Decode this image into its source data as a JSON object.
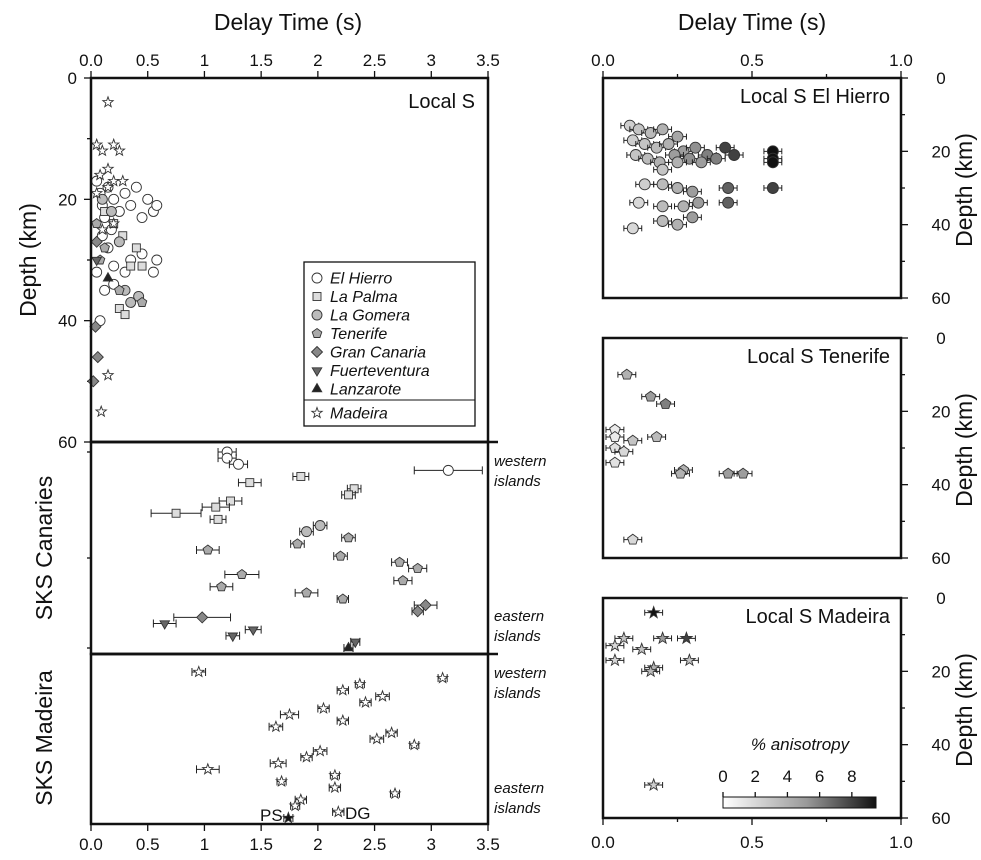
{
  "figure": {
    "top_xlabel_left": "Delay Time (s)",
    "top_xlabel_right": "Delay Time (s)",
    "left_ylabel_local": "Depth (km)",
    "left_ylabel_sks_canaries": "SKS Canaries",
    "left_ylabel_sks_madeira": "SKS Madeira",
    "right_ylabel": "Depth (km)",
    "note_western": [
      "western",
      "islands"
    ],
    "note_eastern": [
      "eastern",
      "islands"
    ],
    "station_labels": [
      "PS",
      "DG"
    ],
    "colorbar": {
      "title": "% anisotropy",
      "ticks": [
        "0",
        "2",
        "4",
        "6",
        "8"
      ],
      "range": [
        0,
        9.5
      ],
      "colors": [
        "#ffffff",
        "#999999",
        "#111111"
      ]
    }
  },
  "legend": {
    "items": [
      {
        "label": "El Hierro",
        "marker": "circle",
        "color": "#ffffff"
      },
      {
        "label": "La Palma",
        "marker": "square",
        "color": "#dddddd"
      },
      {
        "label": "La Gomera",
        "marker": "circle",
        "color": "#bbbbbb"
      },
      {
        "label": "Tenerife",
        "marker": "pentagon",
        "color": "#aaaaaa"
      },
      {
        "label": "Gran Canaria",
        "marker": "diamond",
        "color": "#888888"
      },
      {
        "label": "Fuerteventura",
        "marker": "triangle-down",
        "color": "#666666"
      },
      {
        "label": "Lanzarote",
        "marker": "triangle-up",
        "color": "#222222"
      }
    ],
    "extra": {
      "label": "Madeira",
      "marker": "star",
      "color": "#ffffff"
    }
  },
  "chart_data": [
    {
      "type": "scatter",
      "title": "Local S",
      "xlabel": "Delay Time (s)",
      "ylabel": "Depth (km)",
      "xlim": [
        0,
        3.5
      ],
      "ylim": [
        0,
        60
      ],
      "xticks": [
        0,
        0.5,
        1,
        1.5,
        2,
        2.5,
        3,
        3.5
      ],
      "yticks": [
        0,
        20,
        40,
        60
      ],
      "legend_position": "inside-right",
      "series": [
        {
          "name": "El Hierro",
          "marker": "circle",
          "color": "#ffffff",
          "points": [
            [
              0.05,
              17
            ],
            [
              0.08,
              19
            ],
            [
              0.1,
              21
            ],
            [
              0.12,
              23
            ],
            [
              0.15,
              18
            ],
            [
              0.18,
              25
            ],
            [
              0.2,
              20
            ],
            [
              0.25,
              22
            ],
            [
              0.3,
              19
            ],
            [
              0.35,
              21
            ],
            [
              0.4,
              18
            ],
            [
              0.45,
              23
            ],
            [
              0.5,
              20
            ],
            [
              0.55,
              22
            ],
            [
              0.58,
              21
            ],
            [
              0.1,
              26
            ],
            [
              0.15,
              28
            ],
            [
              0.2,
              31
            ],
            [
              0.3,
              32
            ],
            [
              0.35,
              30
            ],
            [
              0.45,
              29
            ],
            [
              0.55,
              32
            ],
            [
              0.58,
              30
            ],
            [
              0.05,
              32
            ],
            [
              0.12,
              35
            ],
            [
              0.2,
              34
            ],
            [
              0.08,
              40
            ]
          ]
        },
        {
          "name": "La Palma",
          "marker": "square",
          "color": "#dddddd",
          "points": [
            [
              0.12,
              22
            ],
            [
              0.2,
              24
            ],
            [
              0.28,
              26
            ],
            [
              0.35,
              31
            ],
            [
              0.45,
              31
            ],
            [
              0.25,
              38
            ],
            [
              0.3,
              39
            ],
            [
              0.4,
              28
            ]
          ]
        },
        {
          "name": "La Gomera",
          "marker": "circle",
          "color": "#bbbbbb",
          "points": [
            [
              0.1,
              20
            ],
            [
              0.18,
              22
            ],
            [
              0.25,
              27
            ],
            [
              0.3,
              35
            ],
            [
              0.35,
              37
            ],
            [
              0.42,
              36
            ]
          ]
        },
        {
          "name": "Tenerife",
          "marker": "pentagon",
          "color": "#aaaaaa",
          "points": [
            [
              0.05,
              24
            ],
            [
              0.12,
              28
            ],
            [
              0.25,
              35
            ],
            [
              0.45,
              37
            ],
            [
              0.08,
              30
            ]
          ]
        },
        {
          "name": "Gran Canaria",
          "marker": "diamond",
          "color": "#888888",
          "points": [
            [
              0.04,
              41
            ],
            [
              0.06,
              46
            ],
            [
              0.02,
              50
            ],
            [
              0.05,
              27
            ]
          ]
        },
        {
          "name": "Fuerteventura",
          "marker": "triangle-down",
          "color": "#666666",
          "points": [
            [
              0.05,
              30
            ]
          ]
        },
        {
          "name": "Lanzarote",
          "marker": "triangle-up",
          "color": "#222222",
          "points": [
            [
              0.15,
              33
            ]
          ]
        },
        {
          "name": "Madeira",
          "marker": "star",
          "color": "#ffffff",
          "points": [
            [
              0.15,
              4
            ],
            [
              0.05,
              11
            ],
            [
              0.1,
              12
            ],
            [
              0.2,
              11
            ],
            [
              0.25,
              12
            ],
            [
              0.15,
              15
            ],
            [
              0.08,
              16
            ],
            [
              0.2,
              17
            ],
            [
              0.28,
              17
            ],
            [
              0.05,
              19
            ],
            [
              0.15,
              18
            ],
            [
              0.2,
              24
            ],
            [
              0.1,
              25
            ],
            [
              0.15,
              49
            ],
            [
              0.09,
              55
            ]
          ]
        }
      ]
    },
    {
      "type": "scatter",
      "title": "SKS Canaries",
      "xlim": [
        0,
        3.5
      ],
      "series": [
        {
          "name": "El Hierro",
          "marker": "circle",
          "color": "#ffffff",
          "points": [
            {
              "x": 1.2,
              "err": 0.08
            },
            {
              "x": 1.2,
              "err": 0.08
            },
            {
              "x": 1.3,
              "err": 0.08
            },
            {
              "x": 3.15,
              "err": 0.3
            }
          ]
        },
        {
          "name": "La Palma",
          "marker": "square",
          "color": "#dddddd",
          "points": [
            {
              "x": 1.85,
              "err": 0.07
            },
            {
              "x": 1.4,
              "err": 0.1
            },
            {
              "x": 2.32,
              "err": 0.06
            },
            {
              "x": 2.27,
              "err": 0.06
            },
            {
              "x": 1.23,
              "err": 0.1
            },
            {
              "x": 1.1,
              "err": 0.12
            },
            {
              "x": 0.75,
              "err": 0.22
            },
            {
              "x": 1.12,
              "err": 0.07
            }
          ]
        },
        {
          "name": "La Gomera",
          "marker": "circle",
          "color": "#bbbbbb",
          "points": [
            {
              "x": 2.02,
              "err": 0.06
            },
            {
              "x": 1.9,
              "err": 0.06
            }
          ]
        },
        {
          "name": "Tenerife",
          "marker": "pentagon",
          "color": "#aaaaaa",
          "points": [
            {
              "x": 2.27,
              "err": 0.06
            },
            {
              "x": 1.82,
              "err": 0.06
            },
            {
              "x": 1.03,
              "err": 0.1
            },
            {
              "x": 2.2,
              "err": 0.06
            },
            {
              "x": 2.72,
              "err": 0.07
            },
            {
              "x": 2.88,
              "err": 0.08
            },
            {
              "x": 1.33,
              "err": 0.15
            },
            {
              "x": 2.75,
              "err": 0.08
            },
            {
              "x": 1.15,
              "err": 0.1
            },
            {
              "x": 1.9,
              "err": 0.1
            },
            {
              "x": 2.22,
              "err": 0.05
            }
          ]
        },
        {
          "name": "Gran Canaria",
          "marker": "diamond",
          "color": "#888888",
          "points": [
            {
              "x": 2.95,
              "err": 0.1
            },
            {
              "x": 2.88,
              "err": 0.05
            },
            {
              "x": 0.98,
              "err": 0.25
            }
          ]
        },
        {
          "name": "Fuerteventura",
          "marker": "triangle-down",
          "color": "#666666",
          "points": [
            {
              "x": 0.65,
              "err": 0.1
            },
            {
              "x": 1.43,
              "err": 0.07
            },
            {
              "x": 1.25,
              "err": 0.06
            },
            {
              "x": 2.33,
              "err": 0.04
            }
          ]
        },
        {
          "name": "Lanzarote",
          "marker": "triangle-up",
          "color": "#222222",
          "points": [
            {
              "x": 2.27,
              "err": 0.04
            }
          ]
        }
      ]
    },
    {
      "type": "scatter",
      "title": "SKS Madeira",
      "xlim": [
        0,
        3.5
      ],
      "xticks": [
        0,
        0.5,
        1,
        1.5,
        2,
        2.5,
        3,
        3.5
      ],
      "series": [
        {
          "name": "Madeira",
          "marker": "star",
          "color": "#ffffff",
          "points": [
            {
              "x": 0.95,
              "err": 0.06
            },
            {
              "x": 3.1,
              "err": 0.04
            },
            {
              "x": 2.37,
              "err": 0.04
            },
            {
              "x": 2.22,
              "err": 0.05
            },
            {
              "x": 2.57,
              "err": 0.06
            },
            {
              "x": 2.42,
              "err": 0.05
            },
            {
              "x": 2.05,
              "err": 0.05
            },
            {
              "x": 1.75,
              "err": 0.08
            },
            {
              "x": 2.22,
              "err": 0.05
            },
            {
              "x": 1.63,
              "err": 0.06
            },
            {
              "x": 2.65,
              "err": 0.05
            },
            {
              "x": 2.52,
              "err": 0.06
            },
            {
              "x": 2.85,
              "err": 0.04
            },
            {
              "x": 2.02,
              "err": 0.06
            },
            {
              "x": 1.9,
              "err": 0.05
            },
            {
              "x": 1.65,
              "err": 0.07
            },
            {
              "x": 1.03,
              "err": 0.1
            },
            {
              "x": 2.15,
              "err": 0.04
            },
            {
              "x": 1.68,
              "err": 0.04
            },
            {
              "x": 2.15,
              "err": 0.05
            },
            {
              "x": 2.68,
              "err": 0.04
            },
            {
              "x": 1.85,
              "err": 0.05
            },
            {
              "x": 1.8,
              "err": 0.04
            },
            {
              "x": 2.18,
              "err": 0.05
            },
            {
              "x": 1.74,
              "err": 0.04
            }
          ]
        }
      ]
    },
    {
      "type": "scatter",
      "title": "Local S El Hierro",
      "xlim": [
        0,
        1.0
      ],
      "ylim": [
        0,
        60
      ],
      "xticks": [
        0,
        0.5,
        1.0
      ],
      "yticks": [
        0,
        20,
        40,
        60
      ],
      "points_note": "color encodes % anisotropy",
      "points": [
        [
          0.09,
          13,
          2.5
        ],
        [
          0.12,
          14,
          3
        ],
        [
          0.16,
          15,
          3.5
        ],
        [
          0.2,
          14,
          4
        ],
        [
          0.25,
          16,
          4.5
        ],
        [
          0.1,
          17,
          2.5
        ],
        [
          0.14,
          18,
          3
        ],
        [
          0.18,
          19,
          3.5
        ],
        [
          0.22,
          18,
          4
        ],
        [
          0.27,
          20,
          5
        ],
        [
          0.31,
          19,
          5.5
        ],
        [
          0.35,
          21,
          6
        ],
        [
          0.11,
          21,
          3
        ],
        [
          0.15,
          22,
          3.5
        ],
        [
          0.19,
          23,
          4
        ],
        [
          0.24,
          21,
          5
        ],
        [
          0.29,
          22,
          5.5
        ],
        [
          0.41,
          19,
          8
        ],
        [
          0.44,
          21,
          8
        ],
        [
          0.57,
          20,
          9.5
        ],
        [
          0.57,
          22,
          9.5
        ],
        [
          0.57,
          23,
          9.5
        ],
        [
          0.2,
          25,
          3
        ],
        [
          0.25,
          23,
          4
        ],
        [
          0.33,
          23,
          5
        ],
        [
          0.38,
          22,
          6
        ],
        [
          0.14,
          29,
          2.5
        ],
        [
          0.2,
          29,
          3.5
        ],
        [
          0.25,
          30,
          4
        ],
        [
          0.3,
          31,
          5
        ],
        [
          0.42,
          30,
          7
        ],
        [
          0.57,
          30,
          8
        ],
        [
          0.12,
          34,
          2
        ],
        [
          0.2,
          35,
          3.5
        ],
        [
          0.27,
          35,
          4
        ],
        [
          0.32,
          34,
          5
        ],
        [
          0.42,
          34,
          7
        ],
        [
          0.2,
          39,
          3.5
        ],
        [
          0.25,
          40,
          4
        ],
        [
          0.3,
          38,
          5
        ],
        [
          0.1,
          41,
          2
        ]
      ]
    },
    {
      "type": "scatter",
      "title": "Local S Tenerife",
      "xlim": [
        0,
        1.0
      ],
      "ylim": [
        0,
        60
      ],
      "yticks": [
        0,
        20,
        40,
        60
      ],
      "points": [
        [
          0.08,
          10,
          4
        ],
        [
          0.16,
          16,
          5
        ],
        [
          0.21,
          18,
          6
        ],
        [
          0.04,
          25,
          1
        ],
        [
          0.04,
          27,
          1
        ],
        [
          0.04,
          30,
          1.5
        ],
        [
          0.07,
          31,
          2
        ],
        [
          0.1,
          28,
          3
        ],
        [
          0.18,
          27,
          3.5
        ],
        [
          0.04,
          34,
          1.5
        ],
        [
          0.27,
          36,
          4
        ],
        [
          0.26,
          37,
          4
        ],
        [
          0.42,
          37,
          5
        ],
        [
          0.47,
          37,
          5
        ],
        [
          0.1,
          55,
          2
        ]
      ]
    },
    {
      "type": "scatter",
      "title": "Local S Madeira",
      "xlim": [
        0,
        1.0
      ],
      "ylim": [
        0,
        60
      ],
      "yticks": [
        0,
        20,
        40,
        60
      ],
      "points": [
        [
          0.17,
          4,
          9.5
        ],
        [
          0.07,
          11,
          3
        ],
        [
          0.2,
          11,
          5
        ],
        [
          0.28,
          11,
          8
        ],
        [
          0.04,
          13,
          2
        ],
        [
          0.13,
          14,
          3
        ],
        [
          0.04,
          17,
          2
        ],
        [
          0.29,
          17,
          3
        ],
        [
          0.17,
          19,
          4
        ],
        [
          0.16,
          20,
          3.5
        ],
        [
          0.17,
          51,
          2.5
        ]
      ]
    }
  ]
}
